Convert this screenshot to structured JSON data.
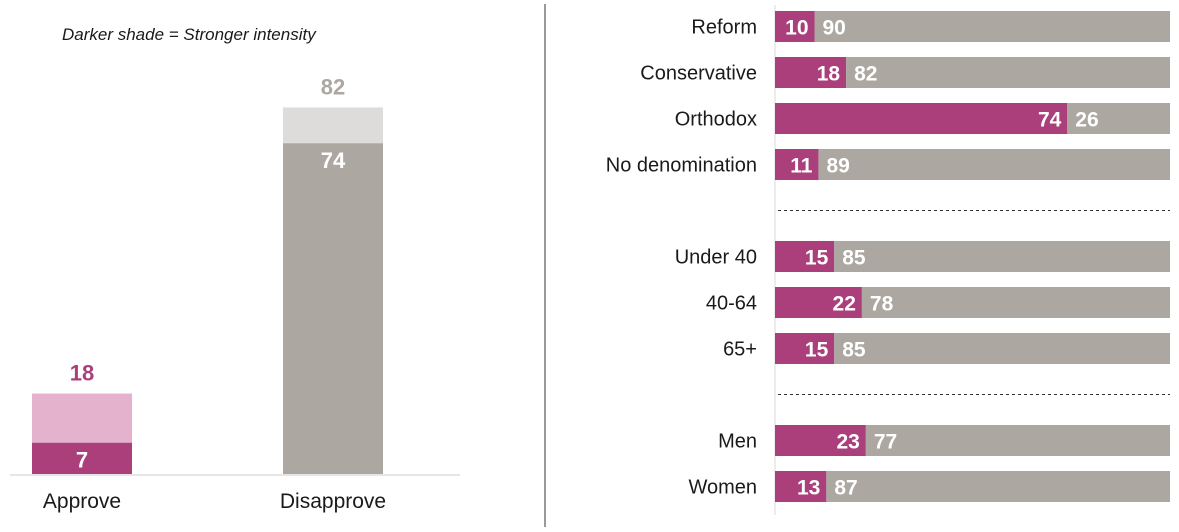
{
  "note": "Darker shade = Stronger intensity",
  "colors": {
    "approve_strong": "#ab3f7c",
    "approve_light": "#e4b2cc",
    "disapprove_strong": "#aca7a1",
    "disapprove_light": "#dddcdb",
    "approve_label": "#ab3f7c",
    "disapprove_label": "#aca7a1",
    "divider": "#333333",
    "axis": "#cccccc",
    "text": "#1a1a1a"
  },
  "chart_data": [
    {
      "type": "bar",
      "stacked": true,
      "categories": [
        "Approve",
        "Disapprove"
      ],
      "totals": [
        18,
        82
      ],
      "strong": [
        7,
        74
      ],
      "ylim": [
        0,
        100
      ]
    },
    {
      "type": "bar",
      "orientation": "horizontal",
      "stacked": true,
      "groups": [
        {
          "rows": [
            {
              "label": "Reform",
              "approve": 10,
              "disapprove": 90
            },
            {
              "label": "Conservative",
              "approve": 18,
              "disapprove": 82
            },
            {
              "label": "Orthodox",
              "approve": 74,
              "disapprove": 26
            },
            {
              "label": "No denomination",
              "approve": 11,
              "disapprove": 89
            }
          ]
        },
        {
          "rows": [
            {
              "label": "Under 40",
              "approve": 15,
              "disapprove": 85
            },
            {
              "label": "40-64",
              "approve": 22,
              "disapprove": 78
            },
            {
              "label": "65+",
              "approve": 15,
              "disapprove": 85
            }
          ]
        },
        {
          "rows": [
            {
              "label": "Men",
              "approve": 23,
              "disapprove": 77
            },
            {
              "label": "Women",
              "approve": 13,
              "disapprove": 87
            }
          ]
        }
      ],
      "xlim": [
        0,
        100
      ]
    }
  ]
}
